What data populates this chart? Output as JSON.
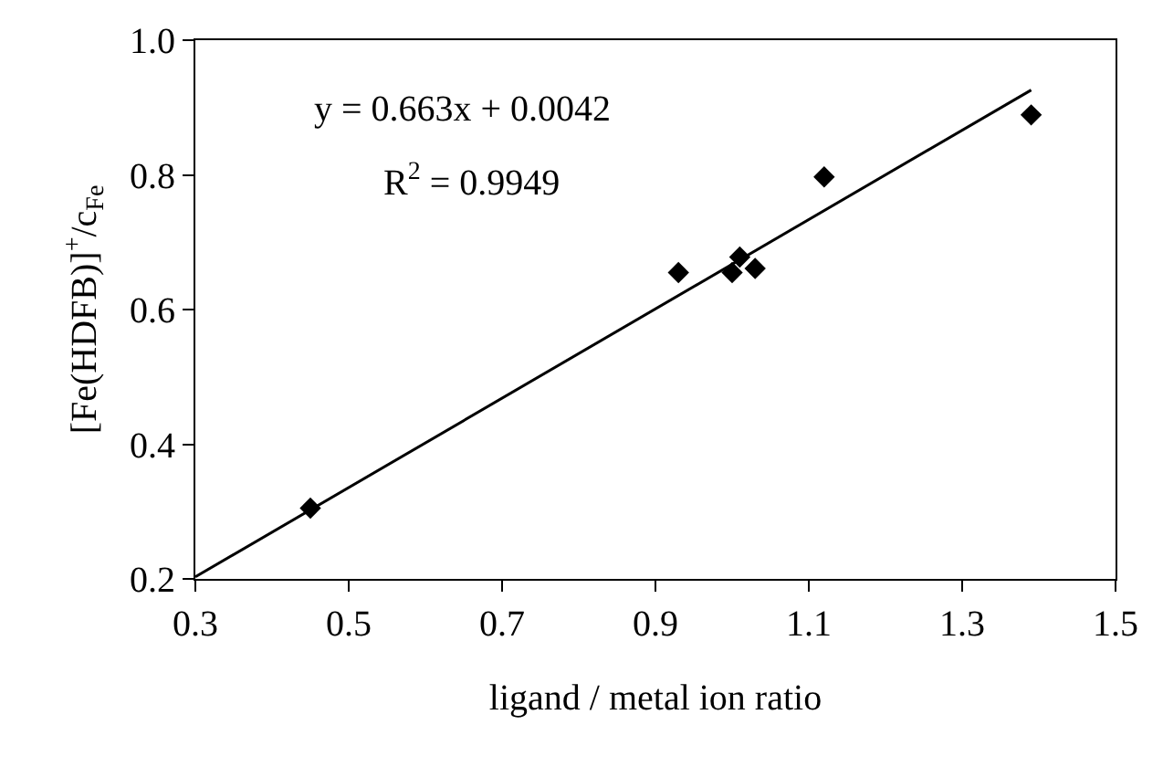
{
  "chart_data": {
    "type": "scatter",
    "xlabel": "ligand / metal ion ratio",
    "ylabel": "[Fe(HDFB)]$^{+}$/c$_{Fe}$",
    "x": [
      0.45,
      0.93,
      1.0,
      1.01,
      1.03,
      1.12,
      1.39
    ],
    "series": [
      {
        "color": "#000000",
        "values": [
          0.305,
          0.655,
          0.655,
          0.678,
          0.661,
          0.797,
          0.889
        ]
      },
      {
        "type": "line",
        "color": "#000000",
        "marker": "none",
        "x": [
          0.3,
          1.39
        ],
        "values": [
          0.203,
          0.926
        ]
      }
    ],
    "annotations": [
      "y = 0.663x + 0.0042",
      "R$^{2}$ = 0.9949"
    ],
    "xlim": [
      0.3,
      1.5
    ],
    "xticks": [
      0.3,
      0.5,
      0.7,
      0.9,
      1.1,
      1.3,
      1.5
    ],
    "ylim": [
      0.2,
      1.0
    ],
    "yticks": [
      {
        "value": 0.2,
        "label": "0.2"
      },
      {
        "value": 0.4,
        "label": "0.4"
      },
      {
        "value": 0.6,
        "label": "0.6"
      },
      {
        "value": 0.8,
        "label": "0.8"
      },
      {
        "value": 1.0,
        "label": "1.0"
      }
    ],
    "marker": "diamond"
  }
}
